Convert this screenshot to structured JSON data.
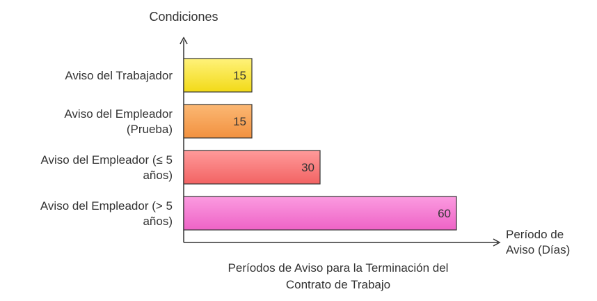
{
  "chart_data": {
    "type": "bar",
    "orientation": "horizontal",
    "title": "Períodos de Aviso para la Terminación del Contrato de Trabajo",
    "title_lines": [
      "Períodos de Aviso para la Terminación del",
      "Contrato de Trabajo"
    ],
    "ylabel": "Condiciones",
    "xlabel": "Período de Aviso (Días)",
    "xlabel_lines": [
      "Período de",
      "Aviso (Días)"
    ],
    "categories": [
      "Aviso del Trabajador",
      "Aviso del Empleador (Prueba)",
      "Aviso del Empleador (≤ 5 años)",
      "Aviso del Empleador (> 5 años)"
    ],
    "category_lines": [
      [
        "Aviso del Trabajador"
      ],
      [
        "Aviso del Empleador",
        "(Prueba)"
      ],
      [
        "Aviso del Empleador (≤ 5",
        "años)"
      ],
      [
        "Aviso del Empleador (> 5",
        "años)"
      ]
    ],
    "values": [
      15,
      15,
      30,
      60
    ],
    "data_labels": [
      "15",
      "15",
      "30",
      "60"
    ],
    "xlim": [
      0,
      60
    ],
    "grid": false,
    "bar_colors": [
      {
        "top": "#fff27a",
        "bottom": "#f2da18"
      },
      {
        "top": "#fbb874",
        "bottom": "#f2913f"
      },
      {
        "top": "#ff9a9a",
        "bottom": "#f26363"
      },
      {
        "top": "#fb9be0",
        "bottom": "#ee63c6"
      }
    ],
    "axis_color": "#333333"
  }
}
